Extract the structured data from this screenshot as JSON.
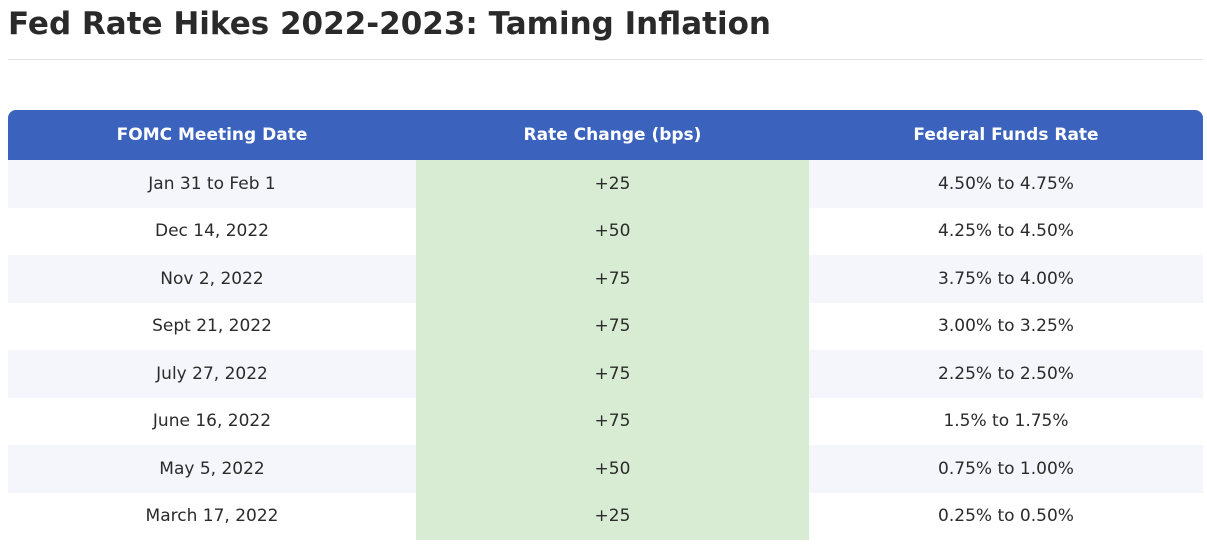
{
  "page": {
    "title": "Fed Rate Hikes 2022-2023: Taming Inflation"
  },
  "table": {
    "headers": {
      "date": "FOMC Meeting Date",
      "change": "Rate Change (bps)",
      "rate": "Federal Funds Rate"
    },
    "rows": [
      {
        "date": "Jan 31 to Feb 1",
        "change": "+25",
        "rate": "4.50% to 4.75%"
      },
      {
        "date": "Dec 14, 2022",
        "change": "+50",
        "rate": "4.25% to 4.50%"
      },
      {
        "date": "Nov 2, 2022",
        "change": "+75",
        "rate": "3.75% to 4.00%"
      },
      {
        "date": "Sept 21, 2022",
        "change": "+75",
        "rate": "3.00% to 3.25%"
      },
      {
        "date": "July 27, 2022",
        "change": "+75",
        "rate": "2.25% to 2.50%"
      },
      {
        "date": "June 16, 2022",
        "change": "+75",
        "rate": "1.5% to 1.75%"
      },
      {
        "date": "May 5, 2022",
        "change": "+50",
        "rate": "0.75% to 1.00%"
      },
      {
        "date": "March 17, 2022",
        "change": "+25",
        "rate": "0.25% to 0.50%"
      }
    ]
  },
  "colors": {
    "header_background": "#3b63be",
    "header_text": "#ffffff",
    "change_column_background": "#d8ecd4",
    "striped_row_background": "#f4f6fb"
  }
}
